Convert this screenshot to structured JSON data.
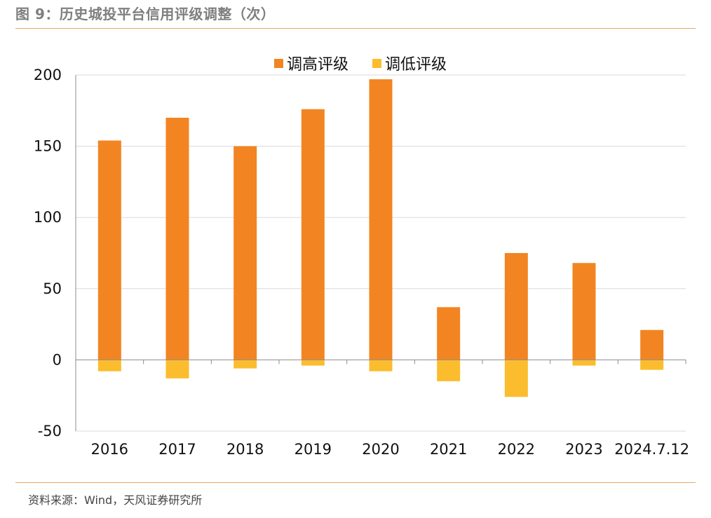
{
  "figure": {
    "title": "图 9：历史城投平台信用评级调整（次）",
    "source": "资料来源：Wind，天风证券研究所"
  },
  "colors": {
    "upgrade": "#f28522",
    "downgrade": "#fbbd2e",
    "grid": "#d9d9d9",
    "axis": "#8c8c8c",
    "rule": "#e6a865"
  },
  "chart_data": {
    "type": "bar",
    "categories": [
      "2016",
      "2017",
      "2018",
      "2019",
      "2020",
      "2021",
      "2022",
      "2023",
      "2024.7.12"
    ],
    "series": [
      {
        "name": "调高评级",
        "values": [
          154,
          170,
          150,
          176,
          197,
          37,
          75,
          68,
          21
        ]
      },
      {
        "name": "调低评级",
        "values": [
          -8,
          -13,
          -6,
          -4,
          -8,
          -15,
          -26,
          -4,
          -7
        ]
      }
    ],
    "stacked": true,
    "ylim": [
      -50,
      200
    ],
    "yticks": [
      -50,
      0,
      50,
      100,
      150,
      200
    ],
    "grid": true,
    "legend_position": "top-center",
    "title": "",
    "xlabel": "",
    "ylabel": ""
  }
}
